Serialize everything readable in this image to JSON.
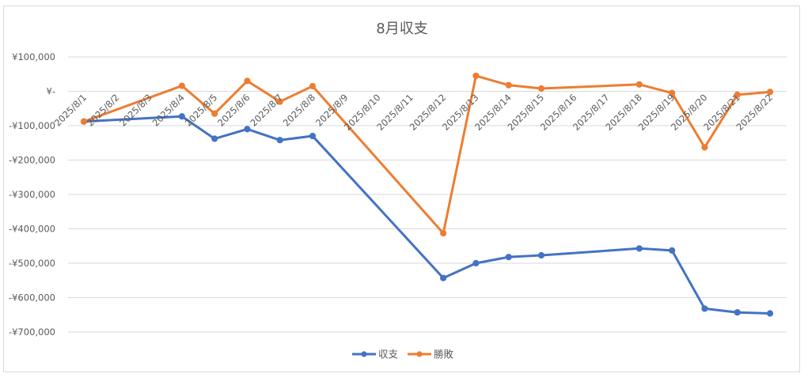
{
  "chart_data": {
    "type": "line",
    "title": "8月収支",
    "xlabel": "",
    "ylabel": "",
    "categories": [
      "2025/8/1",
      "2025/8/2",
      "2025/8/3",
      "2025/8/4",
      "2025/8/5",
      "2025/8/6",
      "2025/8/7",
      "2025/8/8",
      "2025/8/9",
      "2025/8/10",
      "2025/8/11",
      "2025/8/12",
      "2025/8/13",
      "2025/8/14",
      "2025/8/15",
      "2025/8/16",
      "2025/8/17",
      "2025/8/18",
      "2025/8/19",
      "2025/8/20",
      "2025/8/21",
      "2025/8/22"
    ],
    "y_tick_labels": [
      "¥100,000",
      "¥-",
      "-¥100,000",
      "-¥200,000",
      "-¥300,000",
      "-¥400,000",
      "-¥500,000",
      "-¥600,000",
      "-¥700,000"
    ],
    "y_tick_values": [
      100000,
      0,
      -100000,
      -200000,
      -300000,
      -400000,
      -500000,
      -600000,
      -700000
    ],
    "ylim": [
      -700000,
      100000
    ],
    "grid": true,
    "legend_position": "bottom",
    "series": [
      {
        "name": "収支",
        "color": "#4472C4",
        "values": [
          -88000,
          null,
          null,
          -73000,
          -138000,
          -110000,
          -142000,
          -130000,
          null,
          null,
          null,
          -543000,
          -500000,
          -482000,
          -477000,
          null,
          null,
          -457000,
          -463000,
          -632000,
          -643000,
          -646000
        ]
      },
      {
        "name": "勝敗",
        "color": "#ED7D31",
        "values": [
          -88000,
          null,
          null,
          16000,
          -65000,
          30000,
          -30000,
          15000,
          null,
          null,
          null,
          -413000,
          45000,
          18000,
          8000,
          null,
          null,
          20000,
          -5000,
          -163000,
          -10000,
          -2000
        ]
      }
    ]
  }
}
